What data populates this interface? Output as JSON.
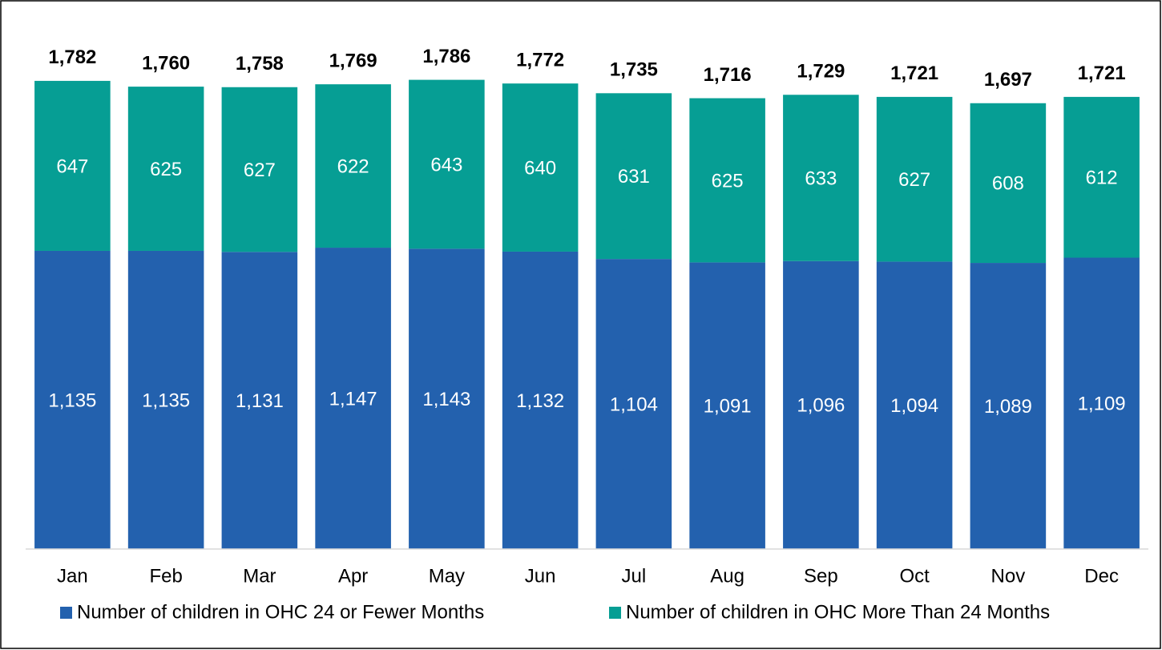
{
  "chart_data": {
    "type": "stacked_bar",
    "categories": [
      "Jan",
      "Feb",
      "Mar",
      "Apr",
      "May",
      "Jun",
      "Jul",
      "Aug",
      "Sep",
      "Oct",
      "Nov",
      "Dec"
    ],
    "series": [
      {
        "name": "Number of children in OHC 24 or Fewer Months",
        "color": "#2361ae",
        "values": [
          1135,
          1135,
          1131,
          1147,
          1143,
          1132,
          1104,
          1091,
          1096,
          1094,
          1089,
          1109
        ],
        "value_labels": [
          "1,135",
          "1,135",
          "1,131",
          "1,147",
          "1,143",
          "1,132",
          "1,104",
          "1,091",
          "1,096",
          "1,094",
          "1,089",
          "1,109"
        ]
      },
      {
        "name": "Number of children in OHC More Than 24 Months",
        "color": "#069e94",
        "values": [
          647,
          625,
          627,
          622,
          643,
          640,
          631,
          625,
          633,
          627,
          608,
          612
        ]
      }
    ],
    "total_labels": [
      "1,782",
      "1,760",
      "1,758",
      "1,769",
      "1,786",
      "1,772",
      "1,735",
      "1,716",
      "1,729",
      "1,721",
      "1,697",
      "1,721"
    ],
    "ylim": [
      0,
      1800
    ],
    "legend": "bottom"
  }
}
